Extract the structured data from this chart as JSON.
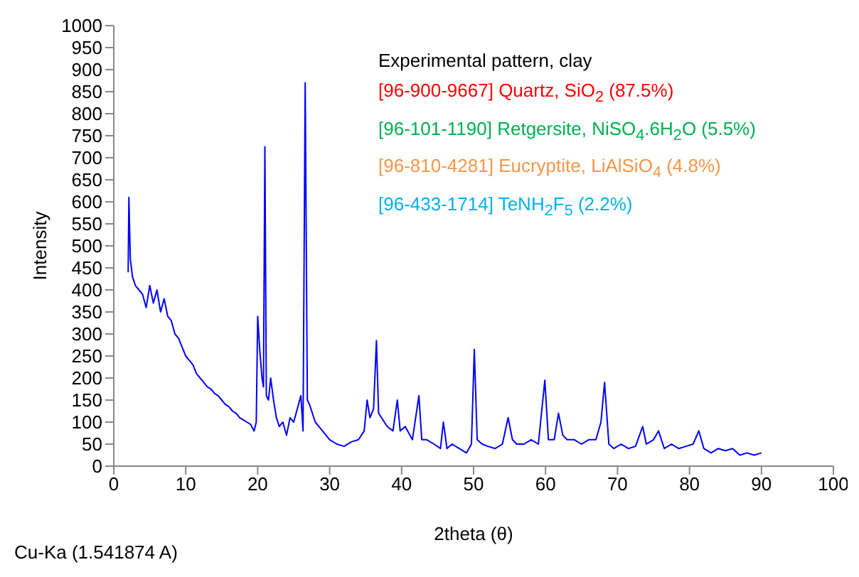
{
  "chart_data": {
    "type": "line",
    "xlabel": "2theta (θ)",
    "ylabel": "Intensity",
    "legend_title": "Experimental pattern, clay",
    "marker": "none",
    "line_style": "solid",
    "grid": false,
    "xlim": [
      0,
      100
    ],
    "xticks": [
      0,
      10,
      20,
      30,
      40,
      50,
      60,
      70,
      80,
      90,
      100
    ],
    "ylim": [
      0,
      1000
    ],
    "yticks": [
      0,
      50,
      100,
      150,
      200,
      250,
      300,
      350,
      400,
      450,
      500,
      550,
      600,
      650,
      700,
      750,
      800,
      850,
      900,
      950,
      1000
    ],
    "annotations": [
      "Cu-Ka (1.541874 A)"
    ],
    "series": [
      {
        "color": "#0000ff",
        "x": [
          2,
          2.1,
          2.3,
          2.6,
          3,
          3.5,
          4,
          4.5,
          5,
          5.5,
          6,
          6.5,
          7,
          7.5,
          8,
          8.5,
          9,
          9.5,
          10,
          10.5,
          11,
          11.5,
          12,
          12.5,
          13,
          13.5,
          14,
          14.5,
          15,
          15.5,
          16,
          16.5,
          17,
          17.5,
          18,
          18.5,
          19,
          19.5,
          19.8,
          20,
          20.3,
          20.6,
          20.8,
          21,
          21.2,
          21.5,
          21.8,
          22.2,
          22.6,
          23,
          23.5,
          24,
          24.5,
          25,
          25.5,
          26,
          26.3,
          26.6,
          26.9,
          27.2,
          27.6,
          28,
          29,
          30,
          31,
          32,
          33,
          34,
          34.8,
          35.2,
          35.6,
          36.1,
          36.5,
          36.8,
          37.2,
          38,
          38.8,
          39.4,
          39.8,
          40.5,
          41.5,
          42.4,
          42.8,
          43.5,
          44.5,
          45.4,
          45.8,
          46.3,
          47,
          48,
          49,
          49.7,
          50.1,
          50.5,
          51.2,
          52,
          53,
          54,
          54.8,
          55.4,
          56,
          57,
          58,
          59,
          59.9,
          60.4,
          61.2,
          61.8,
          62.4,
          63,
          64,
          65,
          66,
          67,
          67.7,
          68.2,
          68.8,
          69.5,
          70.5,
          71.5,
          72.5,
          73.5,
          74,
          75,
          75.7,
          76.5,
          77.5,
          78.5,
          79.5,
          80.5,
          81.3,
          82,
          83,
          84,
          85,
          86,
          87,
          88,
          89,
          90
        ],
        "values": [
          440,
          610,
          470,
          430,
          410,
          400,
          390,
          360,
          410,
          370,
          400,
          350,
          380,
          340,
          330,
          300,
          290,
          270,
          250,
          240,
          230,
          210,
          200,
          190,
          180,
          175,
          165,
          160,
          150,
          140,
          135,
          125,
          120,
          110,
          105,
          100,
          95,
          80,
          100,
          340,
          260,
          200,
          180,
          725,
          160,
          150,
          200,
          150,
          110,
          90,
          100,
          70,
          110,
          100,
          130,
          160,
          80,
          870,
          150,
          140,
          120,
          100,
          80,
          60,
          50,
          45,
          55,
          60,
          80,
          150,
          110,
          130,
          285,
          120,
          110,
          90,
          80,
          150,
          80,
          90,
          60,
          160,
          60,
          60,
          50,
          40,
          100,
          40,
          50,
          40,
          30,
          50,
          265,
          60,
          50,
          45,
          40,
          50,
          110,
          60,
          50,
          50,
          60,
          50,
          195,
          60,
          60,
          120,
          70,
          60,
          60,
          50,
          60,
          60,
          100,
          190,
          50,
          40,
          50,
          40,
          45,
          90,
          50,
          60,
          80,
          40,
          50,
          40,
          45,
          50,
          80,
          40,
          30,
          40,
          35,
          40,
          25,
          30,
          25,
          30
        ]
      },
      {
        "name": "[96-900-9667] Quartz, SiO$_{2}$ (87.5%)",
        "color": "#ff0000"
      },
      {
        "name": "[96-101-1190] Retgersite, NiSO$_{4}$.6H$_{2}$O (5.5%)",
        "color": "#00b050"
      },
      {
        "name": "[96-810-4281] Eucryptite, LiAlSiO$_{4}$ (4.8%)",
        "color": "#f79646"
      },
      {
        "name": "[96-433-1714] TeNH$_{2}$F$_{5}$ (2.2%)",
        "color": "#00b0f0"
      }
    ]
  }
}
